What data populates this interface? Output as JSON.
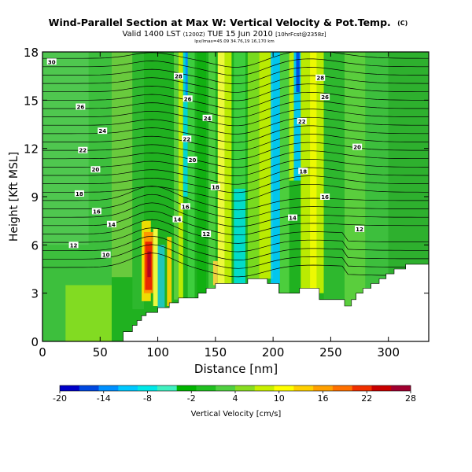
{
  "chart_data": {
    "type": "heatmap",
    "title": "Wind-Parallel Section at Max W: Vertical Velocity & Pot.Temp.",
    "title_units": "(C)",
    "subtitle": "Valid 1400 LST",
    "subtitle_z": "(1200Z)",
    "subtitle_date": "TUE 15 Jun 2010",
    "subtitle_meta": "[10hrFcst@2358z]",
    "small_meta": "lpx/lmax=45.09 34.76,19 16,170 km",
    "xlabel": "Distance [nm]",
    "ylabel": "Height [Kft MSL]",
    "xlim": [
      0,
      335
    ],
    "ylim": [
      0,
      18
    ],
    "xticks": [
      0,
      50,
      100,
      150,
      200,
      250,
      300
    ],
    "yticks": [
      0,
      3,
      6,
      9,
      12,
      15,
      18
    ],
    "colorbar": {
      "label": "Vertical Velocity [cm/s]",
      "ticks": [
        -20,
        -14,
        -8,
        -2,
        4,
        10,
        16,
        22,
        28
      ],
      "min": -20,
      "max": 28,
      "colors": [
        "#0000c8",
        "#0048e0",
        "#0090ff",
        "#00c8ff",
        "#00e8e8",
        "#40f0c0",
        "#00b400",
        "#20c020",
        "#50d040",
        "#88dd20",
        "#c8f000",
        "#ffff00",
        "#ffd000",
        "#ffa000",
        "#ff7000",
        "#f03000",
        "#c80000",
        "#a00030"
      ]
    },
    "contour_labels": [
      {
        "value": "30",
        "x": 8,
        "y": 17.4
      },
      {
        "value": "28",
        "x": 118,
        "y": 16.5
      },
      {
        "value": "26",
        "x": 126,
        "y": 15.1
      },
      {
        "value": "26",
        "x": 33,
        "y": 14.6
      },
      {
        "value": "24",
        "x": 143,
        "y": 13.9
      },
      {
        "value": "24",
        "x": 52,
        "y": 13.1
      },
      {
        "value": "22",
        "x": 35,
        "y": 11.9
      },
      {
        "value": "22",
        "x": 125,
        "y": 12.6
      },
      {
        "value": "20",
        "x": 130,
        "y": 11.3
      },
      {
        "value": "20",
        "x": 46,
        "y": 10.7
      },
      {
        "value": "18",
        "x": 32,
        "y": 9.2
      },
      {
        "value": "18",
        "x": 150,
        "y": 9.6
      },
      {
        "value": "16",
        "x": 47,
        "y": 8.1
      },
      {
        "value": "16",
        "x": 124,
        "y": 8.4
      },
      {
        "value": "14",
        "x": 60,
        "y": 7.3
      },
      {
        "value": "14",
        "x": 117,
        "y": 7.6
      },
      {
        "value": "12",
        "x": 27,
        "y": 6.0
      },
      {
        "value": "12",
        "x": 142,
        "y": 6.7
      },
      {
        "value": "10",
        "x": 55,
        "y": 5.4
      },
      {
        "value": "28",
        "x": 241,
        "y": 16.4
      },
      {
        "value": "26",
        "x": 245,
        "y": 15.2
      },
      {
        "value": "22",
        "x": 225,
        "y": 13.7
      },
      {
        "value": "20",
        "x": 273,
        "y": 12.1
      },
      {
        "value": "18",
        "x": 226,
        "y": 10.6
      },
      {
        "value": "16",
        "x": 245,
        "y": 9.0
      },
      {
        "value": "14",
        "x": 217,
        "y": 7.7
      },
      {
        "value": "12",
        "x": 275,
        "y": 7.0
      }
    ],
    "terrain": [
      [
        0,
        0
      ],
      [
        70,
        0
      ],
      [
        70,
        0.6
      ],
      [
        78,
        0.6
      ],
      [
        78,
        1.0
      ],
      [
        82,
        1.0
      ],
      [
        82,
        1.3
      ],
      [
        86,
        1.3
      ],
      [
        86,
        1.6
      ],
      [
        90,
        1.6
      ],
      [
        90,
        1.8
      ],
      [
        100,
        1.8
      ],
      [
        100,
        2.1
      ],
      [
        110,
        2.1
      ],
      [
        110,
        2.4
      ],
      [
        118,
        2.4
      ],
      [
        118,
        2.7
      ],
      [
        135,
        2.7
      ],
      [
        135,
        3.0
      ],
      [
        142,
        3.0
      ],
      [
        142,
        3.3
      ],
      [
        150,
        3.3
      ],
      [
        150,
        3.6
      ],
      [
        178,
        3.6
      ],
      [
        178,
        3.9
      ],
      [
        195,
        3.9
      ],
      [
        195,
        3.6
      ],
      [
        205,
        3.6
      ],
      [
        205,
        3.0
      ],
      [
        223,
        3.0
      ],
      [
        223,
        3.3
      ],
      [
        240,
        3.3
      ],
      [
        240,
        2.6
      ],
      [
        262,
        2.6
      ],
      [
        262,
        2.2
      ],
      [
        268,
        2.2
      ],
      [
        268,
        2.6
      ],
      [
        272,
        2.6
      ],
      [
        272,
        3.0
      ],
      [
        278,
        3.0
      ],
      [
        278,
        3.3
      ],
      [
        285,
        3.3
      ],
      [
        285,
        3.6
      ],
      [
        292,
        3.6
      ],
      [
        292,
        3.9
      ],
      [
        298,
        3.9
      ],
      [
        298,
        4.2
      ],
      [
        305,
        4.2
      ],
      [
        305,
        4.5
      ],
      [
        315,
        4.5
      ],
      [
        315,
        4.8
      ],
      [
        335,
        4.8
      ],
      [
        335,
        0
      ]
    ]
  }
}
